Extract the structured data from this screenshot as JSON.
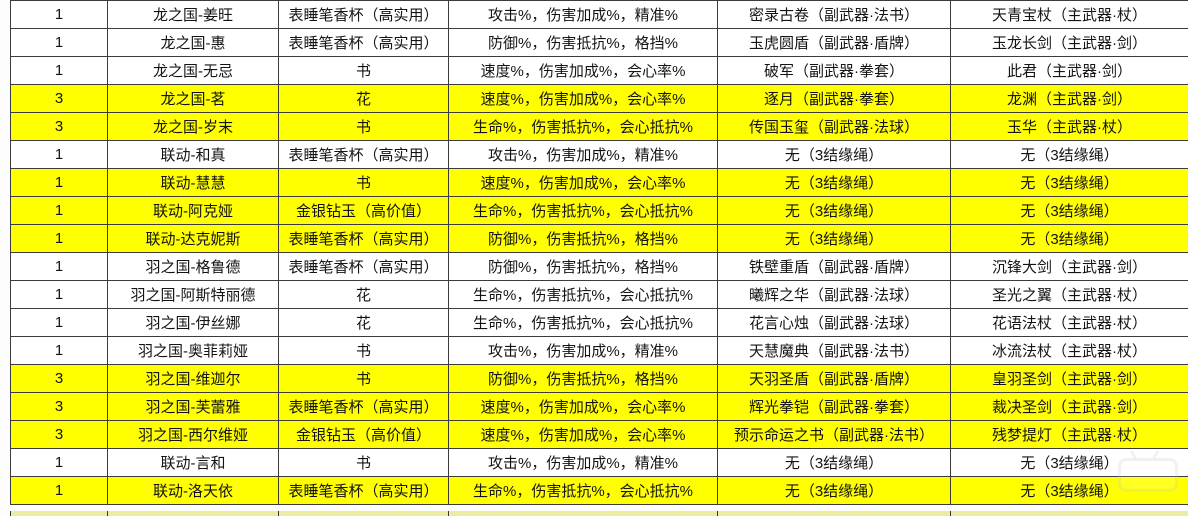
{
  "colors": {
    "highlight_row": "#ffff00",
    "normal_row": "#ffffff",
    "grid_border": "#3b3b3b",
    "text": "#141414"
  },
  "table": {
    "rows": [
      {
        "count": "1",
        "character": "龙之国-姜旺",
        "gift": "表睡笔香杯（高实用）",
        "stats": "攻击%，伤害加成%，精准%",
        "sub_weapon": "密录古卷（副武器·法书）",
        "main_weapon": "天青宝杖（主武器·杖）",
        "highlighted": false
      },
      {
        "count": "1",
        "character": "龙之国-惠",
        "gift": "表睡笔香杯（高实用）",
        "stats": "防御%，伤害抵抗%，格挡%",
        "sub_weapon": "玉虎圆盾（副武器·盾牌）",
        "main_weapon": "玉龙长剑（主武器·剑）",
        "highlighted": false
      },
      {
        "count": "1",
        "character": "龙之国-无忌",
        "gift": "书",
        "stats": "速度%，伤害加成%，会心率%",
        "sub_weapon": "破军（副武器·拳套）",
        "main_weapon": "此君（主武器·剑）",
        "highlighted": false
      },
      {
        "count": "3",
        "character": "龙之国-茗",
        "gift": "花",
        "stats": "速度%，伤害加成%，会心率%",
        "sub_weapon": "逐月（副武器·拳套）",
        "main_weapon": "龙渊（主武器·剑）",
        "highlighted": true
      },
      {
        "count": "3",
        "character": "龙之国-岁末",
        "gift": "书",
        "stats": "生命%，伤害抵抗%，会心抵抗%",
        "sub_weapon": "传国玉玺（副武器·法球）",
        "main_weapon": "玉华（主武器·杖）",
        "highlighted": true
      },
      {
        "count": "1",
        "character": "联动-和真",
        "gift": "表睡笔香杯（高实用）",
        "stats": "攻击%，伤害加成%，精准%",
        "sub_weapon": "无（3结缘绳）",
        "main_weapon": "无（3结缘绳）",
        "highlighted": false
      },
      {
        "count": "1",
        "character": "联动-慧慧",
        "gift": "书",
        "stats": "速度%，伤害加成%，会心率%",
        "sub_weapon": "无（3结缘绳）",
        "main_weapon": "无（3结缘绳）",
        "highlighted": true
      },
      {
        "count": "1",
        "character": "联动-阿克娅",
        "gift": "金银钻玉（高价值）",
        "stats": "生命%，伤害抵抗%，会心抵抗%",
        "sub_weapon": "无（3结缘绳）",
        "main_weapon": "无（3结缘绳）",
        "highlighted": true
      },
      {
        "count": "1",
        "character": "联动-达克妮斯",
        "gift": "表睡笔香杯（高实用）",
        "stats": "防御%，伤害抵抗%，格挡%",
        "sub_weapon": "无（3结缘绳）",
        "main_weapon": "无（3结缘绳）",
        "highlighted": true
      },
      {
        "count": "1",
        "character": "羽之国-格鲁德",
        "gift": "表睡笔香杯（高实用）",
        "stats": "防御%，伤害抵抗%，格挡%",
        "sub_weapon": "铁壁重盾（副武器·盾牌）",
        "main_weapon": "沉锋大剑（主武器·剑）",
        "highlighted": false
      },
      {
        "count": "1",
        "character": "羽之国-阿斯特丽德",
        "gift": "花",
        "stats": "生命%，伤害抵抗%，会心抵抗%",
        "sub_weapon": "曦辉之华（副武器·法球）",
        "main_weapon": "圣光之翼（主武器·杖）",
        "highlighted": false
      },
      {
        "count": "1",
        "character": "羽之国-伊丝娜",
        "gift": "花",
        "stats": "生命%，伤害抵抗%，会心抵抗%",
        "sub_weapon": "花言心烛（副武器·法球）",
        "main_weapon": "花语法杖（主武器·杖）",
        "highlighted": false
      },
      {
        "count": "1",
        "character": "羽之国-奥菲莉娅",
        "gift": "书",
        "stats": "攻击%，伤害加成%，精准%",
        "sub_weapon": "天慧魔典（副武器·法书）",
        "main_weapon": "冰流法杖（主武器·杖）",
        "highlighted": false
      },
      {
        "count": "3",
        "character": "羽之国-维迦尔",
        "gift": "书",
        "stats": "防御%，伤害抵抗%，格挡%",
        "sub_weapon": "天羽圣盾（副武器·盾牌）",
        "main_weapon": "皇羽圣剑（主武器·剑）",
        "highlighted": true
      },
      {
        "count": "3",
        "character": "羽之国-芙蕾雅",
        "gift": "表睡笔香杯（高实用）",
        "stats": "速度%，伤害加成%，会心率%",
        "sub_weapon": "辉光拳铠（副武器·拳套）",
        "main_weapon": "裁决圣剑（主武器·剑）",
        "highlighted": true
      },
      {
        "count": "3",
        "character": "羽之国-西尔维娅",
        "gift": "金银钻玉（高价值）",
        "stats": "速度%，伤害加成%，会心率%",
        "sub_weapon": "预示命运之书（副武器·法书）",
        "main_weapon": "残梦提灯（主武器·杖）",
        "highlighted": true
      },
      {
        "count": "1",
        "character": "联动-言和",
        "gift": "书",
        "stats": "攻击%，伤害加成%，精准%",
        "sub_weapon": "无（3结缘绳）",
        "main_weapon": "无（3结缘绳）",
        "highlighted": false
      },
      {
        "count": "1",
        "character": "联动-洛天依",
        "gift": "表睡笔香杯（高实用）",
        "stats": "生命%，伤害抵抗%，会心抵抗%",
        "sub_weapon": "无（3结缘绳）",
        "main_weapon": "无（3结缘绳）",
        "highlighted": true
      }
    ]
  }
}
